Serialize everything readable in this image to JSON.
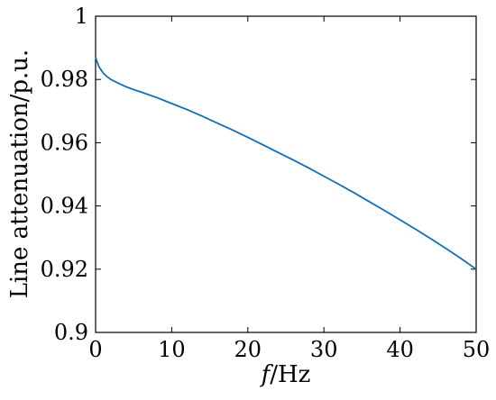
{
  "chart_data": {
    "type": "line",
    "title": "",
    "xlabel": "f/Hz",
    "xlabel_italic_part": "f",
    "xlabel_rest": "/Hz",
    "ylabel": "Line attenuation/p.u.",
    "xlim": [
      0,
      50
    ],
    "ylim": [
      0.9,
      1.0
    ],
    "xticks": [
      0,
      10,
      20,
      30,
      40,
      50
    ],
    "xtick_labels": [
      "0",
      "10",
      "20",
      "30",
      "40",
      "50"
    ],
    "yticks": [
      0.9,
      0.92,
      0.94,
      0.96,
      0.98,
      1.0
    ],
    "ytick_labels": [
      "0.9",
      "0.92",
      "0.94",
      "0.96",
      "0.98",
      "1"
    ],
    "grid": false,
    "legend": "none",
    "series": [
      {
        "color": "#0f6fb8",
        "x": [
          0,
          0.2,
          0.5,
          1,
          1.5,
          2,
          3,
          4,
          5,
          6,
          8,
          10,
          12,
          14,
          16,
          18,
          20,
          22,
          24,
          26,
          28,
          30,
          32,
          34,
          36,
          38,
          40,
          42,
          44,
          46,
          48,
          50
        ],
        "y": [
          0.987,
          0.9855,
          0.9838,
          0.982,
          0.9809,
          0.98,
          0.9788,
          0.9777,
          0.9768,
          0.976,
          0.9743,
          0.9724,
          0.9705,
          0.9684,
          0.9662,
          0.964,
          0.9617,
          0.9593,
          0.9569,
          0.9545,
          0.952,
          0.9494,
          0.9468,
          0.9441,
          0.9413,
          0.9385,
          0.9356,
          0.9327,
          0.9297,
          0.9266,
          0.9234,
          0.92
        ]
      }
    ]
  }
}
